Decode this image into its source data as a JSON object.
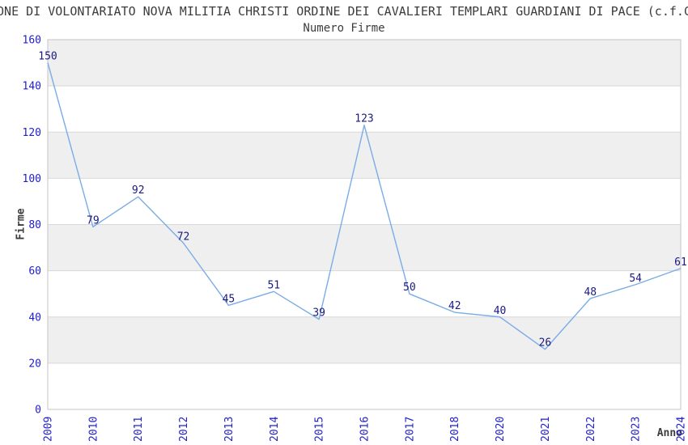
{
  "chart": {
    "title": "ONE DI VOLONTARIATO NOVA MILITIA CHRISTI ORDINE DEI CAVALIERI TEMPLARI GUARDIANI DI PACE (c.f.C",
    "subtitle": "Numero Firme",
    "xlabel": "Anno",
    "ylabel": "Firme"
  },
  "chart_data": {
    "type": "line",
    "title": "Numero Firme",
    "xlabel": "Anno",
    "ylabel": "Firme",
    "categories": [
      "2009",
      "2010",
      "2011",
      "2012",
      "2013",
      "2014",
      "2015",
      "2016",
      "2017",
      "2018",
      "2020",
      "2021",
      "2022",
      "2023",
      "2024"
    ],
    "values": [
      150,
      79,
      92,
      72,
      45,
      51,
      39,
      123,
      50,
      42,
      40,
      26,
      48,
      54,
      61
    ],
    "ylim": [
      0,
      160
    ],
    "yticks": [
      0,
      20,
      40,
      60,
      80,
      100,
      120,
      140,
      160
    ],
    "grid": "horizontal",
    "band_fill": "alternating-gray",
    "legend": "none",
    "point_labels_visible": true,
    "colors": {
      "line": "#7AACE6",
      "tick_label": "#2121CC",
      "point_label": "#1A1A80",
      "band": "#EFEFEF",
      "grid": "#D8D8D8",
      "border": "#C6C6C6",
      "text": "#3C3C3C",
      "background": "#FFFFFF"
    }
  }
}
